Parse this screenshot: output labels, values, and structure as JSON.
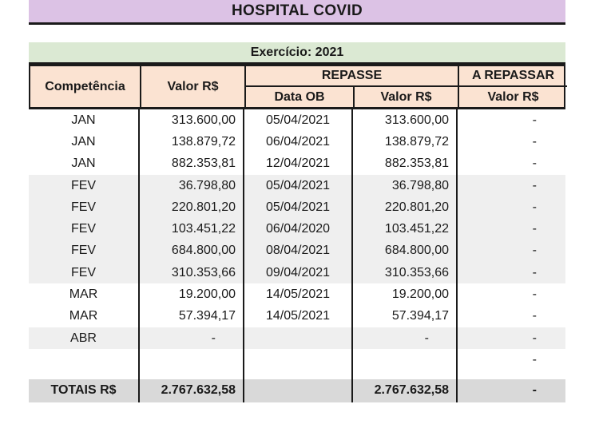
{
  "title": "HOSPITAL COVID",
  "exercicio_label": "Exercício: 2021",
  "colors": {
    "title_band_bg": "#dcc2e5",
    "exercicio_band_bg": "#dbe9d3",
    "header_bg": "#fbe3d2",
    "shaded_row_bg": "#efefef",
    "totals_row_bg": "#d9d9d9",
    "border_line": "#1a1a1a",
    "text": "#1a1a1a"
  },
  "table": {
    "headers": {
      "competencia": "Competência",
      "valor": "Valor R$",
      "repasse_group": "REPASSE",
      "data_ob": "Data OB",
      "repasse_valor": "Valor R$",
      "a_repassar_group": "A REPASSAR",
      "a_repassar_valor": "Valor R$"
    },
    "rows": [
      {
        "competencia": "JAN",
        "valor": "313.600,00",
        "data_ob": "05/04/2021",
        "repasse_valor": "313.600,00",
        "a_repassar": "-"
      },
      {
        "competencia": "JAN",
        "valor": "138.879,72",
        "data_ob": "06/04/2021",
        "repasse_valor": "138.879,72",
        "a_repassar": "-"
      },
      {
        "competencia": "JAN",
        "valor": "882.353,81",
        "data_ob": "12/04/2021",
        "repasse_valor": "882.353,81",
        "a_repassar": "-"
      },
      {
        "competencia": "FEV",
        "valor": "36.798,80",
        "data_ob": "05/04/2021",
        "repasse_valor": "36.798,80",
        "a_repassar": "-"
      },
      {
        "competencia": "FEV",
        "valor": "220.801,20",
        "data_ob": "05/04/2021",
        "repasse_valor": "220.801,20",
        "a_repassar": "-"
      },
      {
        "competencia": "FEV",
        "valor": "103.451,22",
        "data_ob": "06/04/2020",
        "repasse_valor": "103.451,22",
        "a_repassar": "-"
      },
      {
        "competencia": "FEV",
        "valor": "684.800,00",
        "data_ob": "08/04/2021",
        "repasse_valor": "684.800,00",
        "a_repassar": "-"
      },
      {
        "competencia": "FEV",
        "valor": "310.353,66",
        "data_ob": "09/04/2021",
        "repasse_valor": "310.353,66",
        "a_repassar": "-"
      },
      {
        "competencia": "MAR",
        "valor": "19.200,00",
        "data_ob": "14/05/2021",
        "repasse_valor": "19.200,00",
        "a_repassar": "-"
      },
      {
        "competencia": "MAR",
        "valor": "57.394,17",
        "data_ob": "14/05/2021",
        "repasse_valor": "57.394,17",
        "a_repassar": "-"
      },
      {
        "competencia": "ABR",
        "valor": "-",
        "data_ob": "",
        "repasse_valor": "-",
        "a_repassar": "-"
      },
      {
        "competencia": "",
        "valor": "",
        "data_ob": "",
        "repasse_valor": "",
        "a_repassar": "-"
      }
    ],
    "totals": {
      "label": "TOTAIS R$",
      "valor": "2.767.632,58",
      "data_ob": "",
      "repasse_valor": "2.767.632,58",
      "a_repassar": "-"
    }
  }
}
